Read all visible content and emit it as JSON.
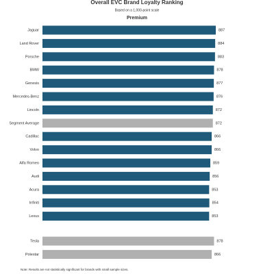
{
  "chart_data": [
    {
      "type": "bar",
      "orientation": "horizontal",
      "title": "Overall EVC Brand Loyalty Ranking",
      "subtitle": "Based on a 1,000-point scale",
      "segment": "Premium",
      "categories": [
        "Jaguar",
        "Land Rover",
        "Porsche",
        "BMW",
        "Genesis",
        "Mercedes-Benz",
        "Lincoln",
        "Segment Average",
        "Cadillac",
        "Volvo",
        "Alfa Romeo",
        "Audi",
        "Acura",
        "Infiniti",
        "Lexus"
      ],
      "values": [
        887,
        884,
        883,
        878,
        877,
        876,
        872,
        872,
        866,
        866,
        859,
        856,
        853,
        854,
        853
      ],
      "colors": [
        "#1f5a7a",
        "#1f5a7a",
        "#1f5a7a",
        "#1f5a7a",
        "#1f5a7a",
        "#1f5a7a",
        "#1f5a7a",
        "#b0b0b0",
        "#1f5a7a",
        "#1f5a7a",
        "#1f5a7a",
        "#1f5a7a",
        "#1f5a7a",
        "#1f5a7a",
        "#1f5a7a"
      ]
    },
    {
      "type": "bar",
      "orientation": "horizontal",
      "categories": [
        "Tesla",
        "Polestar"
      ],
      "values": [
        878,
        866
      ],
      "colors": [
        "#b0b0b0",
        "#b0b0b0"
      ]
    }
  ],
  "note": "Note: Results are not statistically significant for brands with small sample sizes."
}
